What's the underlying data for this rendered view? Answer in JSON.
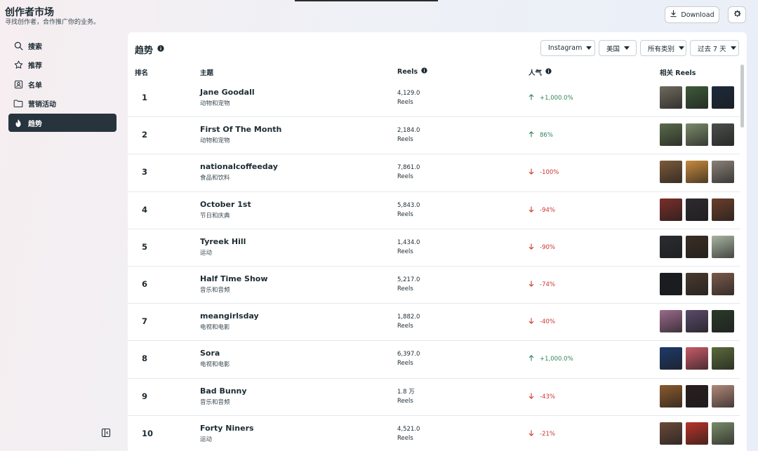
{
  "app": {
    "title": "创作者市场",
    "subtitle": "寻找创作者，合作推广你的业务。",
    "download_label": "Download",
    "download_icon": "download-icon",
    "settings_icon": "gear-icon"
  },
  "sidebar": {
    "items": [
      {
        "label": "搜索",
        "icon": "search-icon"
      },
      {
        "label": "推荐",
        "icon": "star-icon"
      },
      {
        "label": "名单",
        "icon": "contact-list-icon"
      },
      {
        "label": "营销活动",
        "icon": "folder-icon"
      },
      {
        "label": "趋势",
        "icon": "flame-icon",
        "active": true
      }
    ],
    "collapse_icon": "sidebar-toggle-icon"
  },
  "panel": {
    "title": "趋势",
    "filters": {
      "platform": "Instagram",
      "country": "美国",
      "category": "所有类别",
      "period": "过去 7 天"
    },
    "columns": {
      "rank": "排名",
      "topic": "主题",
      "reels": "Reels",
      "popularity": "人气",
      "related": "相关 Reels"
    },
    "rows": [
      {
        "rank": "1",
        "name": "Jane Goodall",
        "category": "动物和宠物",
        "reels_count": "4,129.0",
        "reels_unit": "Reels",
        "trend": "up",
        "change": "+1,000.0%",
        "thumbs": [
          "#6f6a5e",
          "#3e5a3a",
          "#1c2a3c"
        ]
      },
      {
        "rank": "2",
        "name": "First Of The Month",
        "category": "动物和宠物",
        "reels_count": "2,184.0",
        "reels_unit": "Reels",
        "trend": "up",
        "change": "86%",
        "thumbs": [
          "#5a6a4a",
          "#7a8a6a",
          "#4a4e4a"
        ]
      },
      {
        "rank": "3",
        "name": "nationalcoffeeday",
        "category": "食品和饮料",
        "reels_count": "7,861.0",
        "reels_unit": "Reels",
        "trend": "down",
        "change": "-100%",
        "thumbs": [
          "#7c5a3a",
          "#c98a3e",
          "#8a8078"
        ]
      },
      {
        "rank": "4",
        "name": "October 1st",
        "category": "节日和庆典",
        "reels_count": "5,843.0",
        "reels_unit": "Reels",
        "trend": "down",
        "change": "-94%",
        "thumbs": [
          "#7a2e2a",
          "#2e2a2e",
          "#6a3e2a"
        ]
      },
      {
        "rank": "5",
        "name": "Tyreek Hill",
        "category": "运动",
        "reels_count": "1,434.0",
        "reels_unit": "Reels",
        "trend": "down",
        "change": "-90%",
        "thumbs": [
          "#2a2c30",
          "#3a2e24",
          "#a8b4a0"
        ]
      },
      {
        "rank": "6",
        "name": "Half Time Show",
        "category": "音乐和音频",
        "reels_count": "5,217.0",
        "reels_unit": "Reels",
        "trend": "down",
        "change": "-74%",
        "thumbs": [
          "#1a1c22",
          "#4a3a2e",
          "#7a5a4a"
        ]
      },
      {
        "rank": "7",
        "name": "meangirlsday",
        "category": "电视和电影",
        "reels_count": "1,882.0",
        "reels_unit": "Reels",
        "trend": "down",
        "change": "-40%",
        "thumbs": [
          "#9a6a8a",
          "#5a4a6a",
          "#2a3a2a"
        ]
      },
      {
        "rank": "8",
        "name": "Sora",
        "category": "电视和电影",
        "reels_count": "6,397.0",
        "reels_unit": "Reels",
        "trend": "up",
        "change": "+1,000.0%",
        "thumbs": [
          "#1e3a6a",
          "#c85a6a",
          "#5a6a3a"
        ]
      },
      {
        "rank": "9",
        "name": "Bad Bunny",
        "category": "音乐和音频",
        "reels_count": "1.8 万",
        "reels_unit": "Reels",
        "trend": "down",
        "change": "-43%",
        "thumbs": [
          "#8a5a2e",
          "#2a1e1e",
          "#b0887a"
        ]
      },
      {
        "rank": "10",
        "name": "Forty Niners",
        "category": "运动",
        "reels_count": "4,521.0",
        "reels_unit": "Reels",
        "trend": "down",
        "change": "-21%",
        "thumbs": [
          "#6a4a3a",
          "#b8342a",
          "#7a8a6a"
        ]
      }
    ]
  }
}
